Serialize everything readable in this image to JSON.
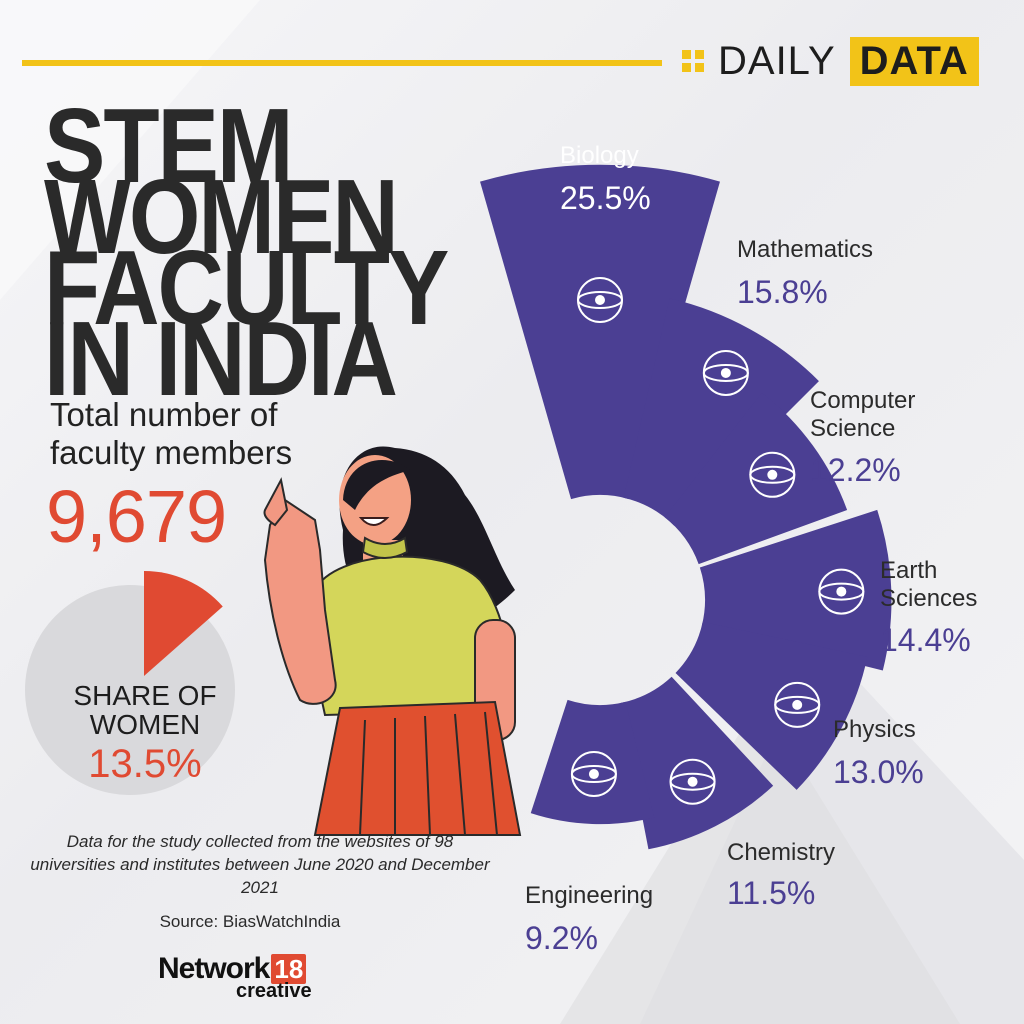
{
  "header": {
    "brand_daily": "DAILY",
    "brand_data": "DATA"
  },
  "title_lines": [
    "STEM",
    "WOMEN",
    "FACULTY",
    "IN INDIA"
  ],
  "total": {
    "label": "Total number of faculty members",
    "value": "9,679"
  },
  "share": {
    "label": "SHARE OF WOMEN",
    "value": "13.5%"
  },
  "note": "Data for the study collected from the websites of 98 universities and institutes between June 2020 and December 2021",
  "source": "Source: BiasWatchIndia",
  "logo": {
    "network": "Network",
    "number": "18",
    "creative": "creative"
  },
  "colors": {
    "accent": "#f2c318",
    "bar": "#4b3f93",
    "highlight": "#e04a32",
    "share_bg": "#d9d9dc"
  },
  "chart_data": [
    {
      "type": "bar",
      "layout": "radial",
      "categories": [
        "Biology",
        "Mathematics",
        "Computer Science",
        "Earth Sciences",
        "Physics",
        "Chemistry",
        "Engineering"
      ],
      "values": [
        25.5,
        15.8,
        12.2,
        14.4,
        13.0,
        11.5,
        9.2
      ],
      "labels": [
        "25.5%",
        "15.8%",
        "12.2%",
        "14.4%",
        "13.0%",
        "11.5%",
        "9.2%"
      ],
      "icons": [
        "dna-atom-icon",
        "geometry-icon",
        "computer-network-icon",
        "earth-gear-icon",
        "atom-icon",
        "flask-icon",
        "engineering-book-icon"
      ],
      "title": "",
      "xlabel": "",
      "ylabel": ""
    },
    {
      "type": "pie",
      "categories": [
        "Women",
        "Other"
      ],
      "values": [
        13.5,
        86.5
      ],
      "title": "SHARE OF WOMEN"
    }
  ]
}
